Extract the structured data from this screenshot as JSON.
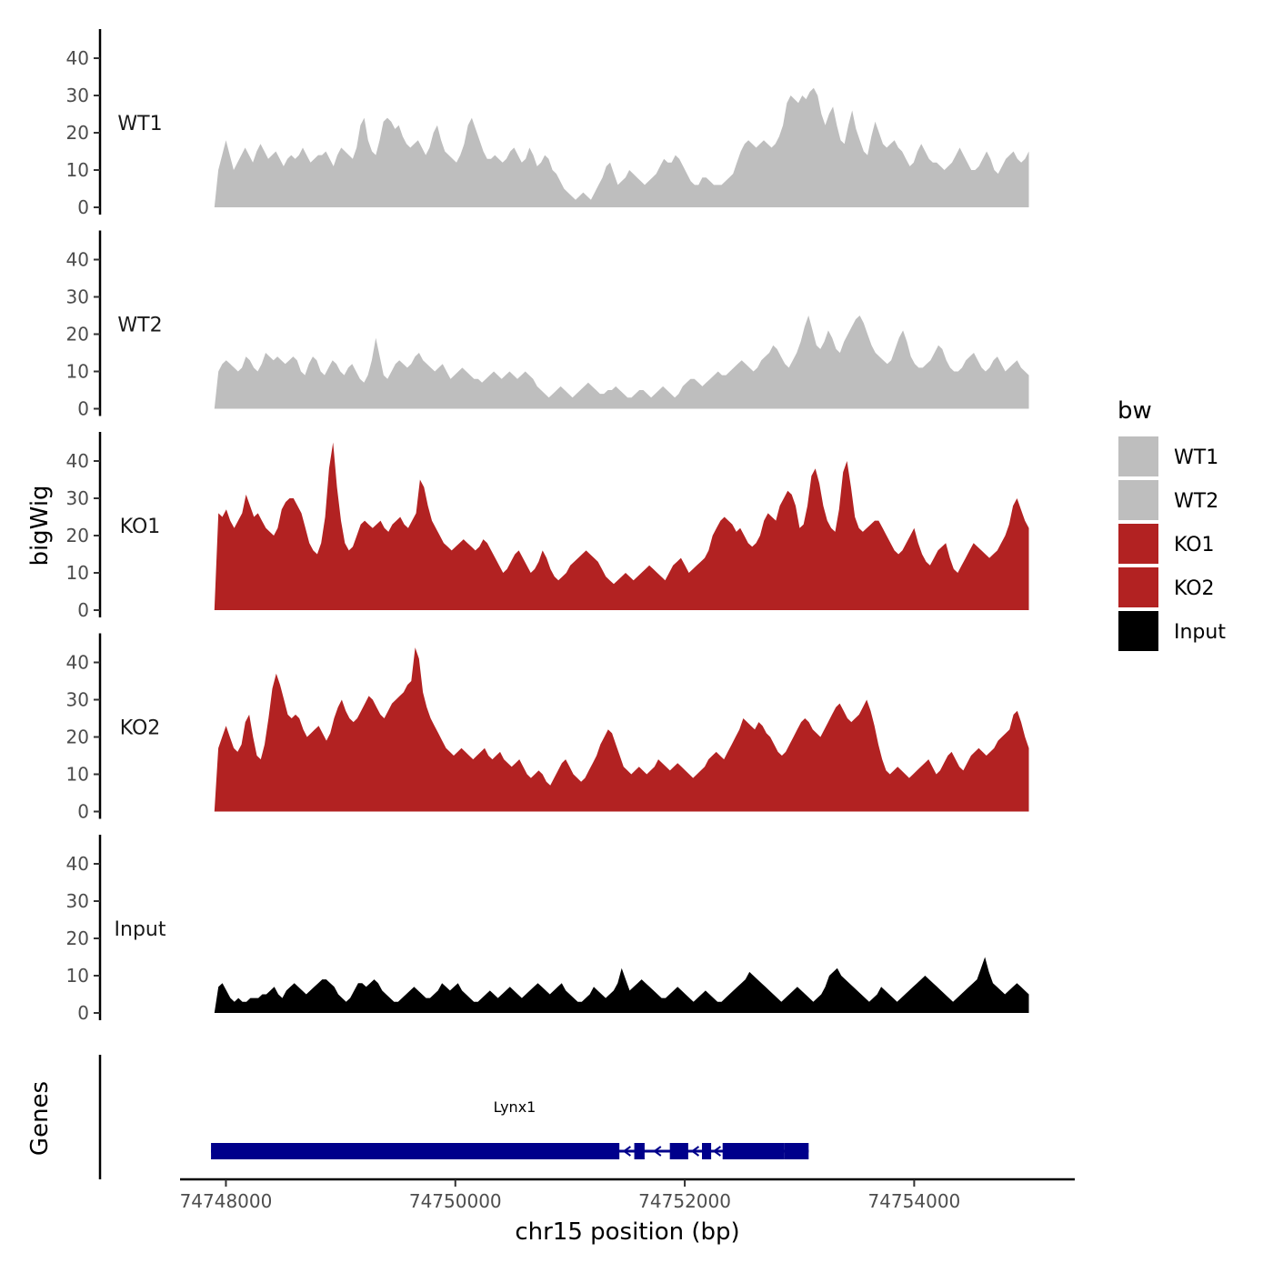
{
  "chart_data": {
    "type": "area",
    "ylabel": "bigWig",
    "xlabel": "chr15 position (bp)",
    "ylim": [
      0,
      47
    ],
    "yticks": [
      0,
      10,
      20,
      30,
      40
    ],
    "xlim": [
      74747600,
      74755400
    ],
    "xticks": [
      74748000,
      74750000,
      74752000,
      74754000
    ],
    "xtick_labels": [
      "74748000",
      "74750000",
      "74752000",
      "74754000"
    ],
    "x_start": 74747900,
    "x_end": 74755000,
    "legend": {
      "title": "bw",
      "position": "right",
      "entries": [
        {
          "label": "WT1",
          "color": "#BEBEBE"
        },
        {
          "label": "WT2",
          "color": "#BEBEBE"
        },
        {
          "label": "KO1",
          "color": "#B22222"
        },
        {
          "label": "KO2",
          "color": "#B22222"
        },
        {
          "label": "Input",
          "color": "#000000"
        }
      ]
    },
    "series": [
      {
        "name": "WT1",
        "color": "#BEBEBE",
        "values": [
          0,
          10,
          14,
          18,
          14,
          10,
          12,
          14,
          16,
          14,
          12,
          15,
          17,
          15,
          13,
          14,
          15,
          13,
          11,
          13,
          14,
          13,
          14,
          16,
          14,
          12,
          13,
          14,
          14,
          15,
          13,
          11,
          14,
          16,
          15,
          14,
          13,
          16,
          22,
          24,
          18,
          15,
          14,
          18,
          23,
          24,
          23,
          21,
          22,
          19,
          17,
          16,
          17,
          18,
          16,
          14,
          16,
          20,
          22,
          18,
          15,
          14,
          13,
          12,
          14,
          17,
          22,
          24,
          21,
          18,
          15,
          13,
          13,
          14,
          13,
          12,
          13,
          15,
          16,
          14,
          12,
          13,
          16,
          14,
          11,
          12,
          14,
          13,
          10,
          9,
          7,
          5,
          4,
          3,
          2,
          3,
          4,
          3,
          2,
          4,
          6,
          8,
          11,
          12,
          9,
          6,
          7,
          8,
          10,
          9,
          8,
          7,
          6,
          7,
          8,
          9,
          11,
          13,
          12,
          12,
          14,
          13,
          11,
          9,
          7,
          6,
          6,
          8,
          8,
          7,
          6,
          6,
          6,
          7,
          8,
          9,
          12,
          15,
          17,
          18,
          17,
          16,
          17,
          18,
          17,
          16,
          17,
          19,
          22,
          28,
          30,
          29,
          28,
          30,
          29,
          31,
          32,
          30,
          25,
          22,
          25,
          27,
          22,
          18,
          17,
          22,
          26,
          21,
          18,
          15,
          14,
          19,
          23,
          20,
          17,
          16,
          17,
          18,
          16,
          15,
          13,
          11,
          12,
          15,
          17,
          15,
          13,
          12,
          12,
          11,
          10,
          11,
          12,
          14,
          16,
          14,
          12,
          10,
          10,
          11,
          13,
          15,
          13,
          10,
          9,
          11,
          13,
          14,
          15,
          13,
          12,
          13,
          15
        ]
      },
      {
        "name": "WT2",
        "color": "#BEBEBE",
        "values": [
          0,
          10,
          12,
          13,
          12,
          11,
          10,
          11,
          14,
          13,
          11,
          10,
          12,
          15,
          14,
          13,
          14,
          13,
          12,
          13,
          14,
          13,
          10,
          9,
          12,
          14,
          13,
          10,
          9,
          11,
          13,
          12,
          10,
          9,
          11,
          12,
          10,
          8,
          7,
          9,
          13,
          19,
          14,
          9,
          8,
          10,
          12,
          13,
          12,
          11,
          12,
          14,
          15,
          13,
          12,
          11,
          10,
          11,
          12,
          10,
          8,
          9,
          10,
          11,
          10,
          9,
          8,
          8,
          7,
          8,
          9,
          10,
          9,
          8,
          9,
          10,
          9,
          8,
          9,
          10,
          9,
          8,
          6,
          5,
          4,
          3,
          4,
          5,
          6,
          5,
          4,
          3,
          4,
          5,
          6,
          7,
          6,
          5,
          4,
          4,
          5,
          5,
          6,
          5,
          4,
          3,
          3,
          4,
          5,
          5,
          4,
          3,
          4,
          5,
          6,
          5,
          4,
          3,
          4,
          6,
          7,
          8,
          8,
          7,
          6,
          7,
          8,
          9,
          10,
          9,
          9,
          10,
          11,
          12,
          13,
          12,
          11,
          10,
          11,
          13,
          14,
          15,
          17,
          16,
          14,
          12,
          11,
          13,
          15,
          18,
          22,
          25,
          21,
          17,
          16,
          18,
          21,
          19,
          16,
          15,
          18,
          20,
          22,
          24,
          25,
          23,
          20,
          17,
          15,
          14,
          13,
          12,
          13,
          16,
          19,
          21,
          18,
          14,
          12,
          11,
          11,
          12,
          13,
          15,
          17,
          16,
          13,
          11,
          10,
          10,
          11,
          13,
          14,
          15,
          13,
          11,
          10,
          11,
          13,
          14,
          12,
          10,
          11,
          12,
          13,
          11,
          10,
          9
        ]
      },
      {
        "name": "KO1",
        "color": "#B22222",
        "values": [
          0,
          26,
          25,
          27,
          24,
          22,
          24,
          26,
          31,
          28,
          25,
          26,
          24,
          22,
          21,
          20,
          22,
          27,
          29,
          30,
          30,
          28,
          26,
          22,
          18,
          16,
          15,
          18,
          25,
          38,
          45,
          33,
          24,
          18,
          16,
          17,
          20,
          23,
          24,
          23,
          22,
          23,
          24,
          22,
          21,
          23,
          24,
          25,
          23,
          22,
          24,
          26,
          35,
          33,
          28,
          24,
          22,
          20,
          18,
          17,
          16,
          17,
          18,
          19,
          18,
          17,
          16,
          17,
          19,
          18,
          16,
          14,
          12,
          10,
          11,
          13,
          15,
          16,
          14,
          12,
          10,
          11,
          13,
          16,
          14,
          11,
          9,
          8,
          9,
          10,
          12,
          13,
          14,
          15,
          16,
          15,
          14,
          13,
          11,
          9,
          8,
          7,
          8,
          9,
          10,
          9,
          8,
          9,
          10,
          11,
          12,
          11,
          10,
          9,
          8,
          10,
          12,
          13,
          14,
          12,
          10,
          11,
          12,
          13,
          14,
          16,
          20,
          22,
          24,
          25,
          24,
          23,
          21,
          22,
          20,
          18,
          17,
          18,
          20,
          24,
          26,
          25,
          24,
          28,
          30,
          32,
          31,
          28,
          22,
          23,
          28,
          36,
          38,
          34,
          28,
          24,
          22,
          21,
          27,
          37,
          40,
          33,
          25,
          22,
          21,
          22,
          23,
          24,
          24,
          22,
          20,
          18,
          16,
          15,
          16,
          18,
          20,
          22,
          18,
          15,
          13,
          12,
          14,
          16,
          17,
          18,
          14,
          11,
          10,
          12,
          14,
          16,
          18,
          17,
          16,
          15,
          14,
          15,
          16,
          18,
          20,
          23,
          28,
          30,
          27,
          24,
          22
        ]
      },
      {
        "name": "KO2",
        "color": "#B22222",
        "values": [
          0,
          17,
          20,
          23,
          20,
          17,
          16,
          18,
          24,
          26,
          20,
          15,
          14,
          18,
          25,
          33,
          37,
          34,
          30,
          26,
          25,
          26,
          25,
          22,
          20,
          21,
          22,
          23,
          21,
          19,
          21,
          25,
          28,
          30,
          27,
          25,
          24,
          25,
          27,
          29,
          31,
          30,
          28,
          26,
          25,
          27,
          29,
          30,
          31,
          32,
          34,
          35,
          44,
          41,
          32,
          28,
          25,
          23,
          21,
          19,
          17,
          16,
          15,
          16,
          17,
          16,
          15,
          14,
          15,
          16,
          17,
          15,
          14,
          15,
          16,
          14,
          13,
          12,
          13,
          14,
          12,
          10,
          9,
          10,
          11,
          10,
          8,
          7,
          9,
          11,
          13,
          14,
          12,
          10,
          9,
          8,
          9,
          11,
          13,
          15,
          18,
          20,
          22,
          21,
          18,
          15,
          12,
          11,
          10,
          11,
          12,
          11,
          10,
          11,
          12,
          14,
          13,
          12,
          11,
          12,
          13,
          12,
          11,
          10,
          9,
          10,
          11,
          12,
          14,
          15,
          16,
          15,
          14,
          16,
          18,
          20,
          22,
          25,
          24,
          23,
          22,
          24,
          23,
          21,
          20,
          18,
          16,
          15,
          16,
          18,
          20,
          22,
          24,
          25,
          24,
          22,
          21,
          20,
          22,
          24,
          26,
          28,
          29,
          27,
          25,
          24,
          25,
          26,
          28,
          30,
          27,
          23,
          18,
          14,
          11,
          10,
          11,
          12,
          11,
          10,
          9,
          10,
          11,
          12,
          13,
          14,
          12,
          10,
          11,
          13,
          15,
          16,
          14,
          12,
          11,
          13,
          15,
          16,
          17,
          16,
          15,
          16,
          17,
          19,
          20,
          21,
          22,
          26,
          27,
          24,
          20,
          17
        ]
      },
      {
        "name": "Input",
        "color": "#000000",
        "values": [
          0,
          7,
          8,
          6,
          4,
          3,
          4,
          3,
          3,
          4,
          4,
          4,
          5,
          5,
          6,
          7,
          5,
          4,
          6,
          7,
          8,
          7,
          6,
          5,
          6,
          7,
          8,
          9,
          9,
          8,
          7,
          5,
          4,
          3,
          4,
          6,
          8,
          8,
          7,
          8,
          9,
          8,
          6,
          5,
          4,
          3,
          3,
          4,
          5,
          6,
          7,
          6,
          5,
          4,
          4,
          5,
          6,
          8,
          7,
          6,
          7,
          8,
          6,
          5,
          4,
          3,
          3,
          4,
          5,
          6,
          5,
          4,
          5,
          6,
          7,
          6,
          5,
          4,
          5,
          6,
          7,
          8,
          7,
          6,
          5,
          6,
          7,
          8,
          6,
          5,
          4,
          3,
          3,
          4,
          5,
          7,
          6,
          5,
          4,
          5,
          6,
          8,
          12,
          9,
          6,
          7,
          8,
          9,
          8,
          7,
          6,
          5,
          4,
          4,
          5,
          6,
          7,
          6,
          5,
          4,
          3,
          4,
          5,
          6,
          5,
          4,
          3,
          3,
          4,
          5,
          6,
          7,
          8,
          9,
          11,
          10,
          9,
          8,
          7,
          6,
          5,
          4,
          3,
          4,
          5,
          6,
          7,
          6,
          5,
          4,
          3,
          4,
          5,
          7,
          10,
          11,
          12,
          10,
          9,
          8,
          7,
          6,
          5,
          4,
          3,
          4,
          5,
          7,
          6,
          5,
          4,
          3,
          4,
          5,
          6,
          7,
          8,
          9,
          10,
          9,
          8,
          7,
          6,
          5,
          4,
          3,
          4,
          5,
          6,
          7,
          8,
          9,
          12,
          15,
          11,
          8,
          7,
          6,
          5,
          6,
          7,
          8,
          7,
          6,
          5
        ]
      }
    ],
    "genes": [
      {
        "name": "Lynx1",
        "start": 74747870,
        "end": 74753080,
        "blocks": [
          [
            74747870,
            74751430
          ],
          [
            74751560,
            74751650
          ],
          [
            74751870,
            74752030
          ],
          [
            74752150,
            74752230
          ],
          [
            74752330,
            74752870
          ],
          [
            74752870,
            74753080
          ]
        ]
      }
    ]
  }
}
